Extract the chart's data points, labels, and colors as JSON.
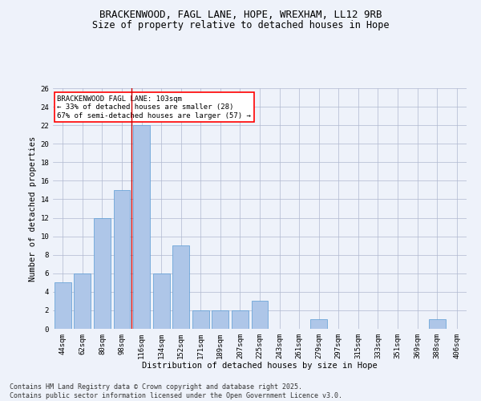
{
  "title1": "BRACKENWOOD, FAGL LANE, HOPE, WREXHAM, LL12 9RB",
  "title2": "Size of property relative to detached houses in Hope",
  "xlabel": "Distribution of detached houses by size in Hope",
  "ylabel": "Number of detached properties",
  "categories": [
    "44sqm",
    "62sqm",
    "80sqm",
    "98sqm",
    "116sqm",
    "134sqm",
    "152sqm",
    "171sqm",
    "189sqm",
    "207sqm",
    "225sqm",
    "243sqm",
    "261sqm",
    "279sqm",
    "297sqm",
    "315sqm",
    "333sqm",
    "351sqm",
    "369sqm",
    "388sqm",
    "406sqm"
  ],
  "values": [
    5,
    6,
    12,
    15,
    22,
    6,
    9,
    2,
    2,
    2,
    3,
    0,
    0,
    1,
    0,
    0,
    0,
    0,
    0,
    1,
    0
  ],
  "bar_color": "#aec6e8",
  "bar_edgecolor": "#5a9bd4",
  "highlight_color": "#cc0000",
  "highlight_index": 3,
  "annotation_box_text": "BRACKENWOOD FAGL LANE: 103sqm\n← 33% of detached houses are smaller (28)\n67% of semi-detached houses are larger (57) →",
  "ylim": [
    0,
    26
  ],
  "yticks": [
    0,
    2,
    4,
    6,
    8,
    10,
    12,
    14,
    16,
    18,
    20,
    22,
    24,
    26
  ],
  "footer": "Contains HM Land Registry data © Crown copyright and database right 2025.\nContains public sector information licensed under the Open Government Licence v3.0.",
  "bg_color": "#eef2fa",
  "plot_bg_color": "#eef2fa",
  "grid_color": "#b0b8d0",
  "title_fontsize": 9,
  "subtitle_fontsize": 8.5,
  "label_fontsize": 7.5,
  "tick_fontsize": 6.5,
  "footer_fontsize": 6,
  "annot_fontsize": 6.5
}
